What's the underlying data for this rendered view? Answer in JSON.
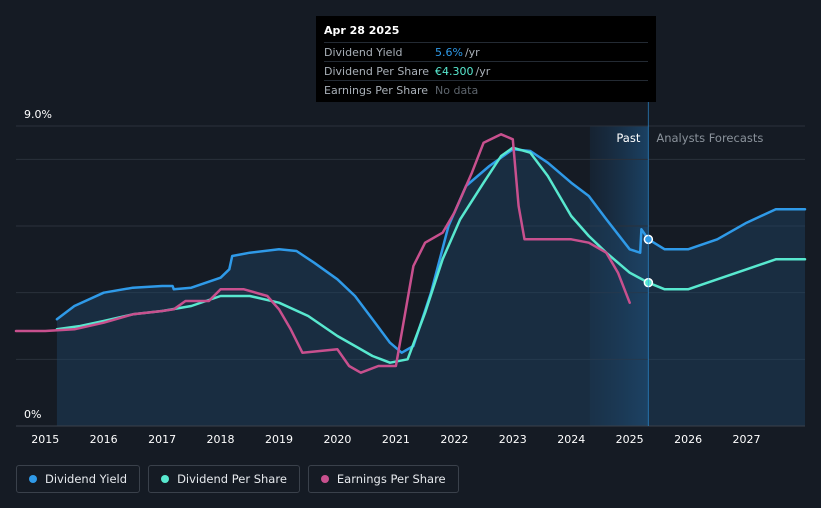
{
  "tooltip": {
    "date": "Apr 28 2025",
    "rows": [
      {
        "label": "Dividend Yield",
        "value": "5.6%",
        "unit": "/yr",
        "color": "#2f9ae8"
      },
      {
        "label": "Dividend Per Share",
        "value": "€4.300",
        "unit": "/yr",
        "color": "#58e8cf"
      },
      {
        "label": "Earnings Per Share",
        "value": "No data",
        "unit": "",
        "color": "#5d646c"
      }
    ]
  },
  "regions": {
    "past": "Past",
    "forecast": "Analysts Forecasts"
  },
  "legend": [
    {
      "label": "Dividend Yield",
      "color": "#2f9ae8"
    },
    {
      "label": "Dividend Per Share",
      "color": "#58e8cf"
    },
    {
      "label": "Earnings Per Share",
      "color": "#c8508e"
    }
  ],
  "chart_data": {
    "type": "line",
    "title": "",
    "xlabel": "",
    "ylabel": "",
    "xlim": [
      2014.5,
      2028.0
    ],
    "ylim": [
      0,
      9.0
    ],
    "y_tick_labels": [
      {
        "value": 9.0,
        "label": "9.0%"
      },
      {
        "value": 0,
        "label": "0%"
      }
    ],
    "x_ticks": [
      2015,
      2016,
      2017,
      2018,
      2019,
      2020,
      2021,
      2022,
      2023,
      2024,
      2025,
      2026,
      2027
    ],
    "past_end": 2025.32,
    "forecast_band_start": 2024.32,
    "gridlines": [
      2,
      4,
      6,
      8,
      9.0
    ],
    "series": [
      {
        "name": "Dividend Yield",
        "color": "#2f9ae8",
        "fill": true,
        "points": [
          [
            2015.2,
            3.2
          ],
          [
            2015.5,
            3.6
          ],
          [
            2016.0,
            4.0
          ],
          [
            2016.5,
            4.15
          ],
          [
            2017.0,
            4.2
          ],
          [
            2017.18,
            4.2
          ],
          [
            2017.2,
            4.1
          ],
          [
            2017.5,
            4.15
          ],
          [
            2018.0,
            4.45
          ],
          [
            2018.15,
            4.7
          ],
          [
            2018.2,
            5.1
          ],
          [
            2018.5,
            5.2
          ],
          [
            2019.0,
            5.3
          ],
          [
            2019.3,
            5.25
          ],
          [
            2019.6,
            4.9
          ],
          [
            2020.0,
            4.4
          ],
          [
            2020.3,
            3.9
          ],
          [
            2020.6,
            3.2
          ],
          [
            2020.9,
            2.5
          ],
          [
            2021.1,
            2.2
          ],
          [
            2021.3,
            2.4
          ],
          [
            2021.6,
            4.0
          ],
          [
            2021.9,
            6.0
          ],
          [
            2022.2,
            7.2
          ],
          [
            2022.6,
            7.8
          ],
          [
            2023.0,
            8.3
          ],
          [
            2023.3,
            8.25
          ],
          [
            2023.6,
            7.9
          ],
          [
            2024.0,
            7.3
          ],
          [
            2024.3,
            6.9
          ],
          [
            2024.6,
            6.2
          ],
          [
            2025.0,
            5.3
          ],
          [
            2025.18,
            5.2
          ],
          [
            2025.2,
            5.9
          ],
          [
            2025.32,
            5.6
          ],
          [
            2025.6,
            5.3
          ],
          [
            2026.0,
            5.3
          ],
          [
            2026.5,
            5.6
          ],
          [
            2027.0,
            6.1
          ],
          [
            2027.5,
            6.5
          ],
          [
            2028.0,
            6.5
          ]
        ]
      },
      {
        "name": "Dividend Per Share",
        "color": "#58e8cf",
        "fill": false,
        "points": [
          [
            2015.2,
            2.9
          ],
          [
            2015.6,
            3.0
          ],
          [
            2016.0,
            3.15
          ],
          [
            2016.5,
            3.35
          ],
          [
            2017.0,
            3.45
          ],
          [
            2017.5,
            3.6
          ],
          [
            2018.0,
            3.9
          ],
          [
            2018.5,
            3.9
          ],
          [
            2019.0,
            3.7
          ],
          [
            2019.5,
            3.3
          ],
          [
            2020.0,
            2.7
          ],
          [
            2020.3,
            2.4
          ],
          [
            2020.6,
            2.1
          ],
          [
            2020.9,
            1.9
          ],
          [
            2021.2,
            2.0
          ],
          [
            2021.5,
            3.4
          ],
          [
            2021.8,
            5.0
          ],
          [
            2022.1,
            6.2
          ],
          [
            2022.5,
            7.3
          ],
          [
            2022.8,
            8.1
          ],
          [
            2023.0,
            8.35
          ],
          [
            2023.3,
            8.2
          ],
          [
            2023.6,
            7.5
          ],
          [
            2024.0,
            6.3
          ],
          [
            2024.3,
            5.7
          ],
          [
            2024.6,
            5.2
          ],
          [
            2025.0,
            4.6
          ],
          [
            2025.32,
            4.3
          ],
          [
            2025.6,
            4.1
          ],
          [
            2026.0,
            4.1
          ],
          [
            2026.5,
            4.4
          ],
          [
            2027.0,
            4.7
          ],
          [
            2027.5,
            5.0
          ],
          [
            2028.0,
            5.0
          ]
        ]
      },
      {
        "name": "Earnings Per Share",
        "color": "#c8508e",
        "fill": false,
        "points": [
          [
            2014.5,
            2.85
          ],
          [
            2015.0,
            2.85
          ],
          [
            2015.5,
            2.9
          ],
          [
            2016.0,
            3.1
          ],
          [
            2016.5,
            3.35
          ],
          [
            2017.0,
            3.45
          ],
          [
            2017.2,
            3.5
          ],
          [
            2017.4,
            3.75
          ],
          [
            2017.8,
            3.75
          ],
          [
            2018.0,
            4.1
          ],
          [
            2018.4,
            4.1
          ],
          [
            2018.8,
            3.9
          ],
          [
            2019.0,
            3.5
          ],
          [
            2019.2,
            2.9
          ],
          [
            2019.4,
            2.2
          ],
          [
            2019.7,
            2.25
          ],
          [
            2020.0,
            2.3
          ],
          [
            2020.2,
            1.8
          ],
          [
            2020.4,
            1.6
          ],
          [
            2020.7,
            1.8
          ],
          [
            2021.0,
            1.8
          ],
          [
            2021.3,
            4.8
          ],
          [
            2021.5,
            5.5
          ],
          [
            2021.8,
            5.8
          ],
          [
            2022.0,
            6.4
          ],
          [
            2022.3,
            7.6
          ],
          [
            2022.5,
            8.5
          ],
          [
            2022.8,
            8.75
          ],
          [
            2023.0,
            8.6
          ],
          [
            2023.1,
            6.6
          ],
          [
            2023.2,
            5.6
          ],
          [
            2023.6,
            5.6
          ],
          [
            2024.0,
            5.6
          ],
          [
            2024.3,
            5.5
          ],
          [
            2024.6,
            5.2
          ],
          [
            2024.8,
            4.6
          ],
          [
            2025.0,
            3.7
          ]
        ]
      }
    ],
    "markers": [
      {
        "series": "Dividend Yield",
        "x": 2025.32,
        "y": 5.6
      },
      {
        "series": "Dividend Per Share",
        "x": 2025.32,
        "y": 4.3
      }
    ]
  }
}
